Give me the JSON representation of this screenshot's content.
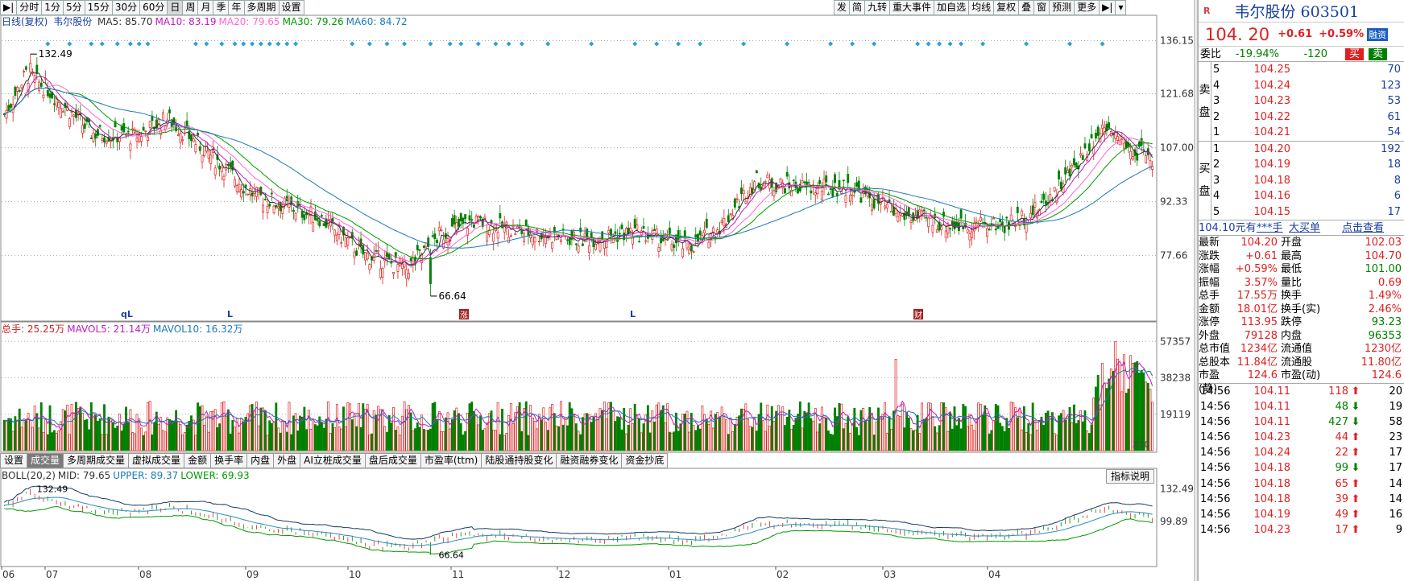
{
  "toolbar_left": [
    "分时",
    "1分",
    "5分",
    "15分",
    "30分",
    "60分",
    "日",
    "周",
    "月",
    "季",
    "年",
    "多周期",
    "设置"
  ],
  "toolbar_left_active": "日",
  "toolbar_right": [
    "发",
    "简",
    "九转",
    "重大事件",
    "加自选",
    "均线",
    "复权",
    "叠",
    "窗",
    "预测",
    "更多"
  ],
  "ma_legend": {
    "prefix": "日线(复权)",
    "name": "韦尔股份",
    "items": [
      {
        "label": "MA5: 85.70",
        "color": "#333333"
      },
      {
        "label": "MA10: 83.19",
        "color": "#c01cc0"
      },
      {
        "label": "MA20: 79.65",
        "color": "#ff66cc"
      },
      {
        "label": "MA30: 79.26",
        "color": "#009900"
      },
      {
        "label": "MA60: 84.72",
        "color": "#1a7ab8"
      }
    ]
  },
  "price_axis": [
    "136.15",
    "121.68",
    "107.00",
    "92.33",
    "77.66"
  ],
  "annot_high": "132.49",
  "annot_low": "66.64",
  "vol_legend": {
    "items": [
      {
        "label": "总手: 25.25万",
        "color": "#d02020"
      },
      {
        "label": "MAVOL5: 21.14万",
        "color": "#c01cc0"
      },
      {
        "label": "MAVOL10: 16.32万",
        "color": "#1a7ab8"
      }
    ]
  },
  "vol_axis": [
    "57357",
    "38238",
    "19119"
  ],
  "vol_unit": "X10",
  "indicator_tabs": [
    "设置",
    "成交量",
    "多周期成交量",
    "虚拟成交量",
    "金额",
    "换手率",
    "内盘",
    "外盘",
    "AI立桩成交量",
    "盘后成交量",
    "市盈率(ttm)",
    "陆股通持股变化",
    "融资融券变化",
    "资金抄底"
  ],
  "indicator_active": "成交量",
  "help_button": "指标说明",
  "boll_legend": {
    "items": [
      {
        "label": "BOLL(20,2)",
        "color": "#333333"
      },
      {
        "label": "MID: 79.65",
        "color": "#333333"
      },
      {
        "label": "UPPER: 89.37",
        "color": "#1a7ab8"
      },
      {
        "label": "LOWER: 69.93",
        "color": "#009900"
      }
    ]
  },
  "boll_axis": [
    "132.49",
    "99.89"
  ],
  "boll_high": "132.49",
  "boll_low": "66.64",
  "x_months": [
    "06",
    "07",
    "08",
    "09",
    "10",
    "11",
    "12",
    "01",
    "02",
    "03",
    "04"
  ],
  "markers": {
    "ql": "qL",
    "l": "L"
  },
  "event_tags": {
    "zhang": "涨",
    "cai": "财"
  },
  "quote": {
    "logo": "R",
    "title": "韦尔股份 603501",
    "price": "104. 20",
    "change": "+0.61",
    "pct": "+0.59%",
    "rongzi": "融资",
    "weibi_label": "委比",
    "weibi": "-19.94%",
    "weicha": "-120",
    "buy_btn": "买",
    "sell_btn": "卖",
    "sell_side": "卖盘",
    "buy_side": "买盘",
    "sell": [
      {
        "n": "5",
        "p": "104.25",
        "q": "70"
      },
      {
        "n": "4",
        "p": "104.24",
        "q": "123"
      },
      {
        "n": "3",
        "p": "104.23",
        "q": "53"
      },
      {
        "n": "2",
        "p": "104.22",
        "q": "61"
      },
      {
        "n": "1",
        "p": "104.21",
        "q": "54"
      }
    ],
    "buy": [
      {
        "n": "1",
        "p": "104.20",
        "q": "192"
      },
      {
        "n": "2",
        "p": "104.19",
        "q": "18"
      },
      {
        "n": "3",
        "p": "104.18",
        "q": "8"
      },
      {
        "n": "4",
        "p": "104.16",
        "q": "6"
      },
      {
        "n": "5",
        "p": "104.15",
        "q": "17"
      }
    ],
    "big_order": {
      "a": "104.10元有",
      "b": "***手",
      "c": "大买单",
      "d": "点击查看"
    },
    "stats": [
      {
        "l1": "最新",
        "v1": "104.20",
        "c1": "red",
        "l2": "开盘",
        "v2": "102.03",
        "c2": "red"
      },
      {
        "l1": "涨跌",
        "v1": "+0.61",
        "c1": "red",
        "l2": "最高",
        "v2": "104.70",
        "c2": "red"
      },
      {
        "l1": "涨幅",
        "v1": "+0.59%",
        "c1": "red",
        "l2": "最低",
        "v2": "101.00",
        "c2": "green"
      },
      {
        "l1": "振幅",
        "v1": "3.57%",
        "c1": "red",
        "l2": "量比",
        "v2": "0.69",
        "c2": "red"
      },
      {
        "l1": "总手",
        "v1": "17.55万",
        "c1": "red",
        "l2": "换手",
        "v2": "1.49%",
        "c2": "red"
      },
      {
        "l1": "金额",
        "v1": "18.01亿",
        "c1": "red",
        "l2": "换手(实)",
        "v2": "2.46%",
        "c2": "red"
      },
      {
        "l1": "涨停",
        "v1": "113.95",
        "c1": "red",
        "l2": "跌停",
        "v2": "93.23",
        "c2": "green"
      },
      {
        "l1": "外盘",
        "v1": "79128",
        "c1": "red",
        "l2": "内盘",
        "v2": "96353",
        "c2": "green"
      },
      {
        "l1": "总市值",
        "v1": "1234亿",
        "c1": "red",
        "l2": "流通值",
        "v2": "1230亿",
        "c2": "red"
      },
      {
        "l1": "总股本",
        "v1": "11.84亿",
        "c1": "red",
        "l2": "流通股",
        "v2": "11.80亿",
        "c2": "red"
      },
      {
        "l1": "市盈(静)",
        "v1": "124.6",
        "c1": "red",
        "l2": "市盈(动)",
        "v2": "124.6",
        "c2": "red"
      }
    ],
    "ticks": [
      {
        "t": "14:56",
        "p": "104.11",
        "v": "118",
        "d": "up",
        "n": "20"
      },
      {
        "t": "14:56",
        "p": "104.11",
        "v": "48",
        "d": "down",
        "n": "19"
      },
      {
        "t": "14:56",
        "p": "104.11",
        "v": "427",
        "d": "down",
        "n": "58"
      },
      {
        "t": "14:56",
        "p": "104.23",
        "v": "44",
        "d": "up",
        "n": "23"
      },
      {
        "t": "14:56",
        "p": "104.24",
        "v": "22",
        "d": "up",
        "n": "17"
      },
      {
        "t": "14:56",
        "p": "104.18",
        "v": "99",
        "d": "down",
        "n": "17"
      },
      {
        "t": "14:56",
        "p": "104.18",
        "v": "65",
        "d": "up",
        "n": "14"
      },
      {
        "t": "14:56",
        "p": "104.18",
        "v": "39",
        "d": "up",
        "n": "14"
      },
      {
        "t": "14:56",
        "p": "104.19",
        "v": "49",
        "d": "up",
        "n": "16"
      },
      {
        "t": "14:56",
        "p": "104.23",
        "v": "17",
        "d": "up",
        "n": "9"
      }
    ]
  }
}
